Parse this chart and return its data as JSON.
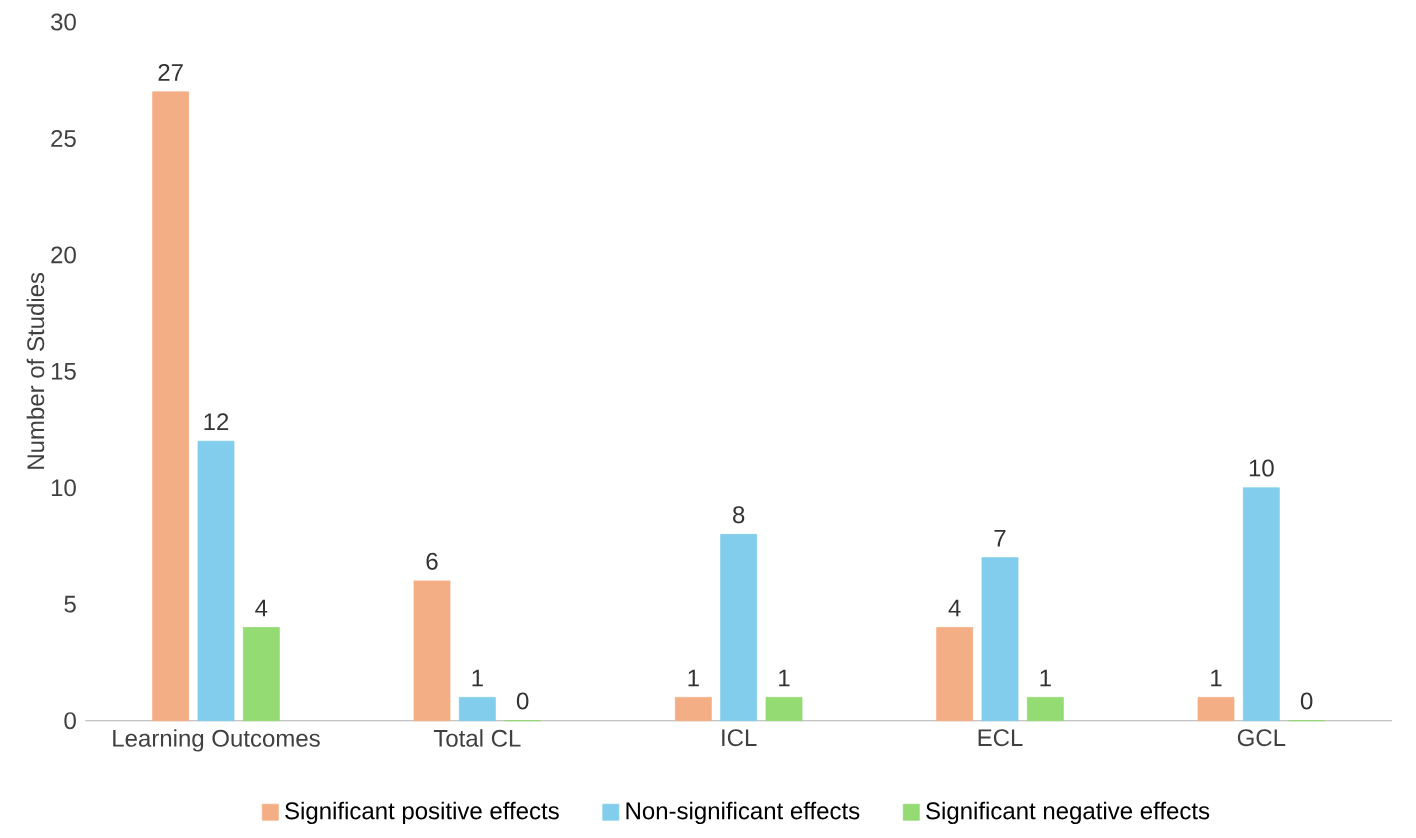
{
  "chart_data": {
    "type": "bar",
    "ylabel": "Number of Studies",
    "categories": [
      "Learning Outcomes",
      "Total CL",
      "ICL",
      "ECL",
      "GCL"
    ],
    "series": [
      {
        "name": "Significant positive effects",
        "color": "#f4ae85",
        "values": [
          27,
          6,
          1,
          4,
          1
        ]
      },
      {
        "name": "Non-significant effects",
        "color": "#82cdeb",
        "values": [
          12,
          1,
          8,
          7,
          10
        ]
      },
      {
        "name": "Significant negative effects",
        "color": "#93db72",
        "values": [
          4,
          0,
          1,
          1,
          0
        ]
      }
    ],
    "ylim": [
      0,
      30
    ],
    "yticks": [
      0,
      5,
      10,
      15,
      20,
      25,
      30
    ],
    "data_labels": true,
    "legend": "bottom"
  }
}
